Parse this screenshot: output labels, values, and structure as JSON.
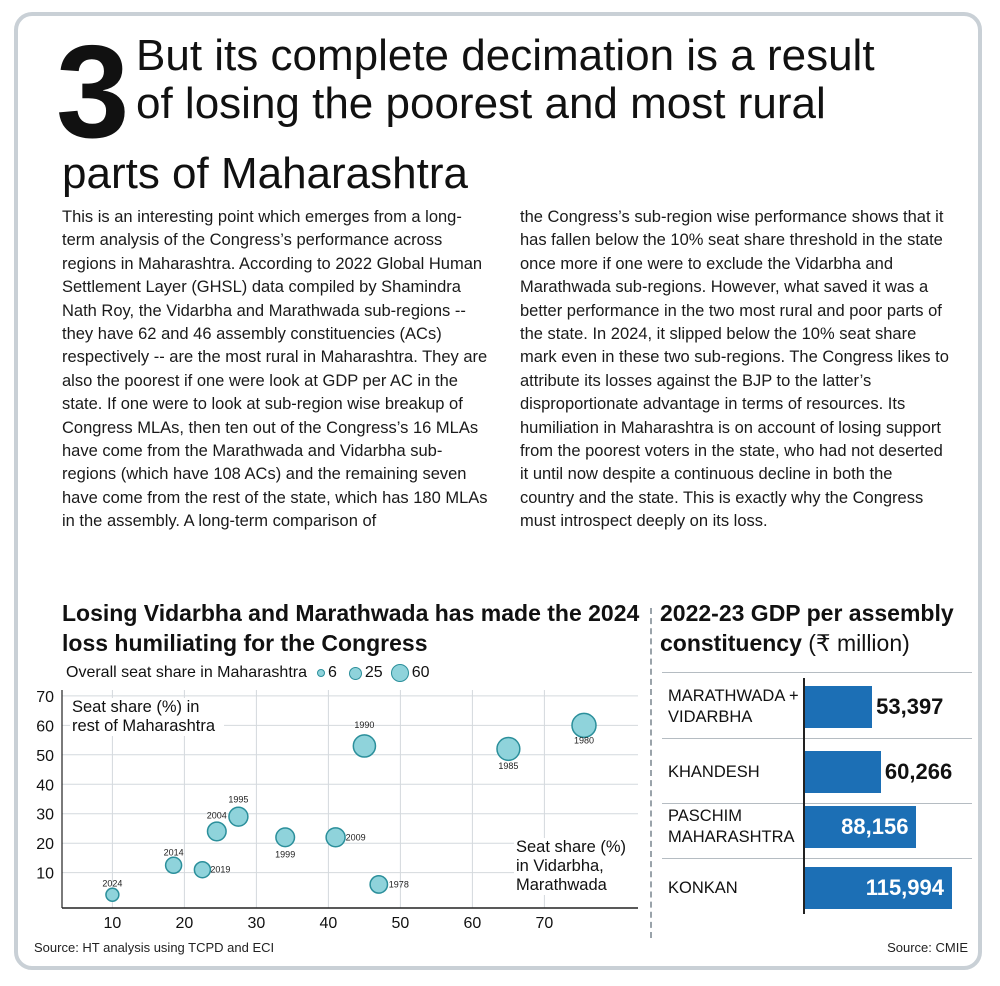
{
  "header": {
    "number": "3",
    "headline_line1": "But its complete decimation is a result",
    "headline_line2": "of losing the poorest and most rural",
    "headline_line3": "parts of Maharashtra"
  },
  "article": {
    "left_column": "This is an interesting point which emerges from a long-term analysis of the Congress’s performance across regions in Maharashtra. According to 2022 Global Human Settlement Layer (GHSL) data compiled by Shamindra Nath Roy, the Vidarbha and Marathwada sub-regions -- they have 62 and 46 assembly constituencies (ACs) respectively -- are the most rural in Maharashtra. They are also the poorest if one were look at GDP per AC in the state. If one were to look at sub-region wise breakup of Congress MLAs, then ten out of the Congress’s 16 MLAs have come from the Marathwada and Vidarbha sub-regions (which have 108 ACs) and the remaining seven have come from the rest of the state, which has 180 MLAs in the assembly. A long-term comparison of",
    "right_column": "the Congress’s sub-region wise performance shows that it has fallen below the 10% seat share threshold in the state once more if one were to exclude the Vidarbha and Marathwada sub-regions. However, what saved it was a better performance in the two most rural and poor parts of the state. In 2024, it slipped below the 10% seat share mark even in these two sub-regions. The Congress likes to attribute its losses against the BJP to the latter’s disproportionate advantage in terms of resources. Its humiliation in Maharashtra is on account of losing support from the poorest voters in the state, who had not deserted it until now despite a continuous decline in both the country and the state. This is exactly why the Congress must introspect deeply on its loss."
  },
  "chart_data": [
    {
      "type": "scatter",
      "title": "Losing Vidarbha and Marathwada has made the 2024 loss humiliating for the Congress",
      "xlabel": "Seat share (%) in Vidarbha, Marathwada",
      "ylabel": "Seat share (%) in rest of Maharashtra",
      "xlim": [
        3,
        83
      ],
      "ylim": [
        -2,
        72
      ],
      "x_ticks": [
        10,
        20,
        30,
        40,
        50,
        60,
        70
      ],
      "y_ticks": [
        10,
        20,
        30,
        40,
        50,
        60,
        70
      ],
      "grid": true,
      "size_legend": {
        "label": "Overall seat share in Maharashtra",
        "values": [
          6,
          25,
          60
        ]
      },
      "marker_color": "#8fd3db",
      "marker_edge": "#2b8f9b",
      "points": [
        {
          "label": "1980",
          "x": 75.5,
          "y": 60,
          "size": 64
        },
        {
          "label": "1985",
          "x": 65,
          "y": 52,
          "size": 55
        },
        {
          "label": "1990",
          "x": 45,
          "y": 53,
          "size": 50
        },
        {
          "label": "1995",
          "x": 27.5,
          "y": 29,
          "size": 30
        },
        {
          "label": "2004",
          "x": 24.5,
          "y": 24,
          "size": 28
        },
        {
          "label": "1999",
          "x": 34,
          "y": 22,
          "size": 28
        },
        {
          "label": "2009",
          "x": 41,
          "y": 22,
          "size": 30
        },
        {
          "label": "2014",
          "x": 18.5,
          "y": 12.5,
          "size": 16
        },
        {
          "label": "2019",
          "x": 22.5,
          "y": 11,
          "size": 16
        },
        {
          "label": "1978",
          "x": 47,
          "y": 6,
          "size": 22
        },
        {
          "label": "2024",
          "x": 10,
          "y": 2.5,
          "size": 6
        }
      ],
      "source": "Source: HT analysis using TCPD and ECI"
    },
    {
      "type": "bar",
      "orientation": "horizontal",
      "title": "2022-23 GDP per assembly constituency",
      "unit": "(₹ million)",
      "categories": [
        "MARATHWADA + VIDARBHA",
        "KHANDESH",
        "PASCHIM MAHARASHTRA",
        "KONKAN"
      ],
      "values": [
        53397,
        60266,
        88156,
        115994
      ],
      "value_labels": [
        "53,397",
        "60,266",
        "88,156",
        "115,994"
      ],
      "bar_color": "#1c6fb5",
      "source": "Source: CMIE"
    }
  ]
}
